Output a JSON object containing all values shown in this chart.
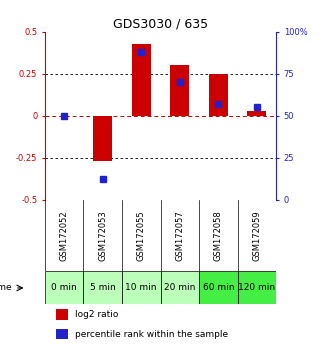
{
  "title": "GDS3030 / 635",
  "samples": [
    "GSM172052",
    "GSM172053",
    "GSM172055",
    "GSM172057",
    "GSM172058",
    "GSM172059"
  ],
  "time_labels": [
    "0 min",
    "5 min",
    "10 min",
    "20 min",
    "60 min",
    "120 min"
  ],
  "log2_ratio": [
    0.0,
    -0.27,
    0.43,
    0.3,
    0.25,
    0.03
  ],
  "percentile_rank": [
    50,
    12,
    88,
    70,
    57,
    55
  ],
  "ylim_left": [
    -0.5,
    0.5
  ],
  "ylim_right": [
    0,
    100
  ],
  "bar_color": "#cc0000",
  "dot_color": "#2222cc",
  "zero_line_color": "#cc0000",
  "bg_color": "#ffffff",
  "plot_bg": "#ffffff",
  "sample_bg": "#cccccc",
  "time_bg_light": "#bbffbb",
  "time_bg_dark": "#44ee44",
  "left_axis_color": "#cc0000",
  "right_axis_color": "#2222cc",
  "title_color": "#000000",
  "title_fontsize": 9,
  "tick_fontsize": 6,
  "legend_fontsize": 6.5,
  "sample_fontsize": 6,
  "time_fontsize": 6.5,
  "bar_width": 0.5,
  "dot_size": 20,
  "left_yticks": [
    -0.5,
    -0.25,
    0,
    0.25,
    0.5
  ],
  "left_yticklabels": [
    "-0.5",
    "-0.25",
    "0",
    "0.25",
    "0.5"
  ],
  "right_yticks": [
    0,
    25,
    50,
    75,
    100
  ],
  "right_yticklabels": [
    "0",
    "25",
    "50",
    "75",
    "100%"
  ],
  "time_colors": [
    "#bbffbb",
    "#bbffbb",
    "#bbffbb",
    "#bbffbb",
    "#44ee44",
    "#44ee44"
  ]
}
